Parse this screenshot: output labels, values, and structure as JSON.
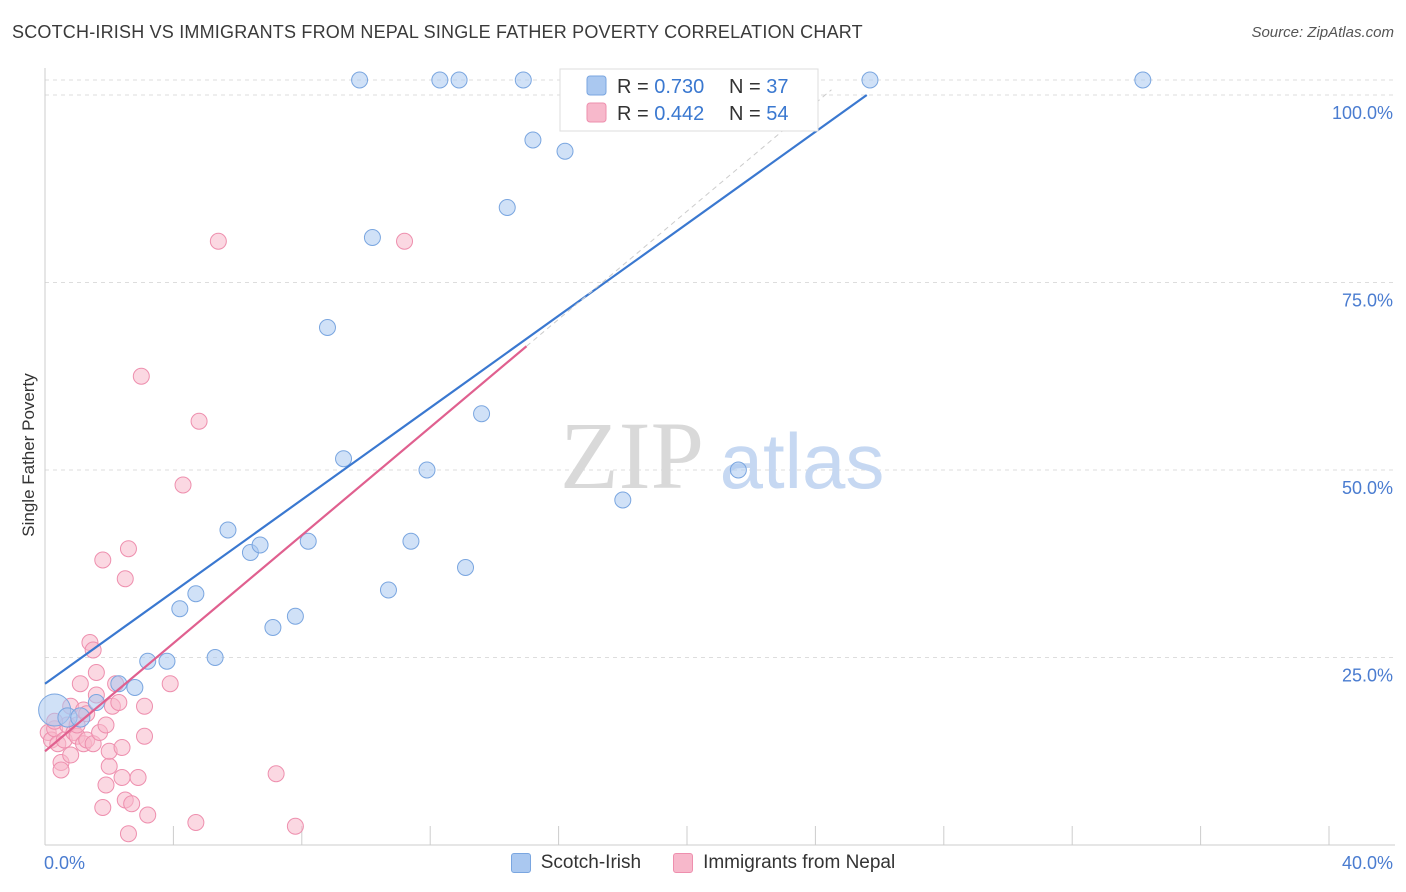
{
  "header": {
    "title": "SCOTCH-IRISH VS IMMIGRANTS FROM NEPAL SINGLE FATHER POVERTY CORRELATION CHART",
    "source": "Source: ZipAtlas.com"
  },
  "watermark": {
    "zip": "ZIP",
    "atlas": "atlas"
  },
  "colors": {
    "blue_fill": "#aac8f0",
    "blue_stroke": "#7aa6e0",
    "blue_line": "#3a78d0",
    "pink_fill": "#f7b8cb",
    "pink_stroke": "#ee8fae",
    "pink_line": "#e0608f",
    "tick_text": "#4a7cd0",
    "grid": "#dddddd"
  },
  "legend": {
    "rows": [
      {
        "r_label": "R = ",
        "r_value": "0.730",
        "n_label": "N = ",
        "n_value": "37"
      },
      {
        "r_label": "R = ",
        "r_value": "0.442",
        "n_label": "N = ",
        "n_value": "54"
      }
    ]
  },
  "chart_data": {
    "type": "scatter",
    "title": "SCOTCH-IRISH VS IMMIGRANTS FROM NEPAL SINGLE FATHER POVERTY CORRELATION CHART",
    "xlabel": "",
    "ylabel": "Single Father Poverty",
    "xlim": [
      0,
      40
    ],
    "ylim": [
      0,
      102
    ],
    "x_tick_labels": [
      "0.0%",
      "40.0%"
    ],
    "y_ticks": [
      25,
      50,
      75,
      100
    ],
    "y_tick_labels": [
      "25.0%",
      "50.0%",
      "75.0%",
      "100.0%"
    ],
    "grid": true,
    "legend_position": "top-center",
    "series": [
      {
        "name": "Scotch-Irish",
        "r": 0.73,
        "n": 37,
        "trend": {
          "x0": 0,
          "y0": 21.5,
          "x1": 25.6,
          "y1": 100
        },
        "points": [
          [
            0.3,
            18,
            20
          ],
          [
            0.7,
            17,
            12
          ],
          [
            1.1,
            17,
            12
          ],
          [
            1.6,
            19,
            10
          ],
          [
            2.3,
            21.5,
            10
          ],
          [
            2.8,
            21,
            10
          ],
          [
            3.2,
            24.5,
            10
          ],
          [
            3.8,
            24.5,
            10
          ],
          [
            4.2,
            31.5,
            10
          ],
          [
            4.7,
            33.5,
            10
          ],
          [
            5.3,
            25,
            10
          ],
          [
            5.7,
            42,
            10
          ],
          [
            6.4,
            39,
            10
          ],
          [
            6.7,
            40,
            10
          ],
          [
            7.1,
            29,
            10
          ],
          [
            7.8,
            30.5,
            10
          ],
          [
            8.2,
            40.5,
            10
          ],
          [
            8.8,
            69,
            10
          ],
          [
            9.3,
            51.5,
            10
          ],
          [
            9.8,
            102,
            10
          ],
          [
            10.2,
            81,
            10
          ],
          [
            10.7,
            34,
            10
          ],
          [
            11.4,
            40.5,
            10
          ],
          [
            11.9,
            50,
            10
          ],
          [
            12.3,
            102,
            10
          ],
          [
            12.9,
            102,
            10
          ],
          [
            13.1,
            37,
            10
          ],
          [
            13.6,
            57.5,
            10
          ],
          [
            14.4,
            85,
            10
          ],
          [
            14.9,
            102,
            10
          ],
          [
            15.2,
            94,
            10
          ],
          [
            16.2,
            92.5,
            10
          ],
          [
            17.5,
            102,
            10
          ],
          [
            18.0,
            46,
            10
          ],
          [
            21.6,
            50,
            10
          ],
          [
            25.7,
            102,
            10
          ],
          [
            34.2,
            102,
            10
          ]
        ]
      },
      {
        "name": "Immigrants from Nepal",
        "r": 0.442,
        "n": 54,
        "trend": {
          "x0": 0,
          "y0": 12.5,
          "x1": 15,
          "y1": 66.5
        },
        "points": [
          [
            0.1,
            15,
            10
          ],
          [
            0.2,
            14,
            10
          ],
          [
            0.3,
            15.5,
            10
          ],
          [
            0.4,
            13.5,
            10
          ],
          [
            0.5,
            11,
            10
          ],
          [
            0.5,
            10,
            10
          ],
          [
            0.6,
            14,
            10
          ],
          [
            0.7,
            16,
            10
          ],
          [
            0.8,
            18.5,
            10
          ],
          [
            0.8,
            12,
            10
          ],
          [
            0.9,
            15,
            10
          ],
          [
            1.0,
            14.5,
            10
          ],
          [
            1.0,
            16,
            10
          ],
          [
            1.1,
            21.5,
            10
          ],
          [
            1.2,
            13.5,
            10
          ],
          [
            1.2,
            18,
            10
          ],
          [
            1.3,
            17.5,
            10
          ],
          [
            1.3,
            14,
            10
          ],
          [
            1.4,
            27,
            10
          ],
          [
            1.5,
            26,
            10
          ],
          [
            1.5,
            13.5,
            10
          ],
          [
            1.6,
            23,
            10
          ],
          [
            1.6,
            20,
            10
          ],
          [
            1.7,
            15,
            10
          ],
          [
            1.8,
            38,
            10
          ],
          [
            1.8,
            5,
            10
          ],
          [
            1.9,
            8,
            10
          ],
          [
            2.0,
            10.5,
            10
          ],
          [
            2.0,
            12.5,
            10
          ],
          [
            2.1,
            18.5,
            10
          ],
          [
            2.2,
            21.5,
            10
          ],
          [
            2.3,
            19,
            10
          ],
          [
            2.4,
            13,
            10
          ],
          [
            2.4,
            9,
            10
          ],
          [
            2.5,
            35.5,
            10
          ],
          [
            2.5,
            6,
            10
          ],
          [
            2.6,
            39.5,
            10
          ],
          [
            2.6,
            1.5,
            10
          ],
          [
            2.7,
            5.5,
            10
          ],
          [
            2.9,
            9,
            10
          ],
          [
            3.0,
            62.5,
            10
          ],
          [
            3.1,
            14.5,
            10
          ],
          [
            3.1,
            18.5,
            10
          ],
          [
            3.2,
            4,
            10
          ],
          [
            3.9,
            21.5,
            10
          ],
          [
            4.3,
            48,
            10
          ],
          [
            4.7,
            3,
            10
          ],
          [
            4.8,
            56.5,
            10
          ],
          [
            5.4,
            80.5,
            10
          ],
          [
            7.2,
            9.5,
            10
          ],
          [
            7.8,
            2.5,
            10
          ],
          [
            11.2,
            80.5,
            10
          ],
          [
            0.3,
            16.5,
            10
          ],
          [
            1.9,
            16,
            10
          ]
        ]
      }
    ]
  },
  "bottom_legend": [
    "Scotch-Irish",
    "Immigrants from Nepal"
  ]
}
